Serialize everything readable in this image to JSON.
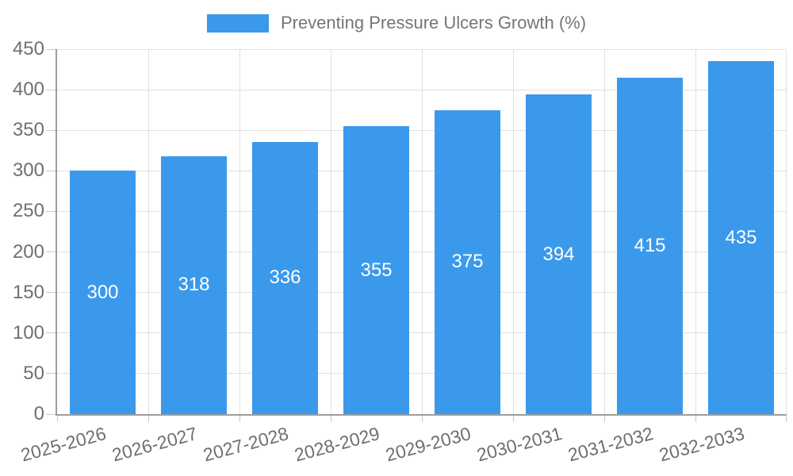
{
  "legend": {
    "label": "Preventing Pressure Ulcers Growth (%)"
  },
  "chart_data": {
    "type": "bar",
    "title": "Preventing Pressure Ulcers Growth (%)",
    "categories": [
      "2025-2026",
      "2026-2027",
      "2027-2028",
      "2028-2029",
      "2029-2030",
      "2030-2031",
      "2031-2032",
      "2032-2033"
    ],
    "values": [
      300,
      318,
      336,
      355,
      375,
      394,
      415,
      435
    ],
    "xlabel": "",
    "ylabel": "",
    "ylim": [
      0,
      450
    ],
    "yticks": [
      0,
      50,
      100,
      150,
      200,
      250,
      300,
      350,
      400,
      450
    ],
    "grid": true,
    "legend_position": "top-center",
    "colors": {
      "bar": "#3b99ec",
      "bar_label_text": "#ffffff",
      "axis_line": "#9e9e9e",
      "gridline": "#e0e0e0",
      "tick": "#c9c9c9",
      "axis_text": "#6f6f6f",
      "legend_text": "#757575",
      "background": "#ffffff"
    }
  }
}
